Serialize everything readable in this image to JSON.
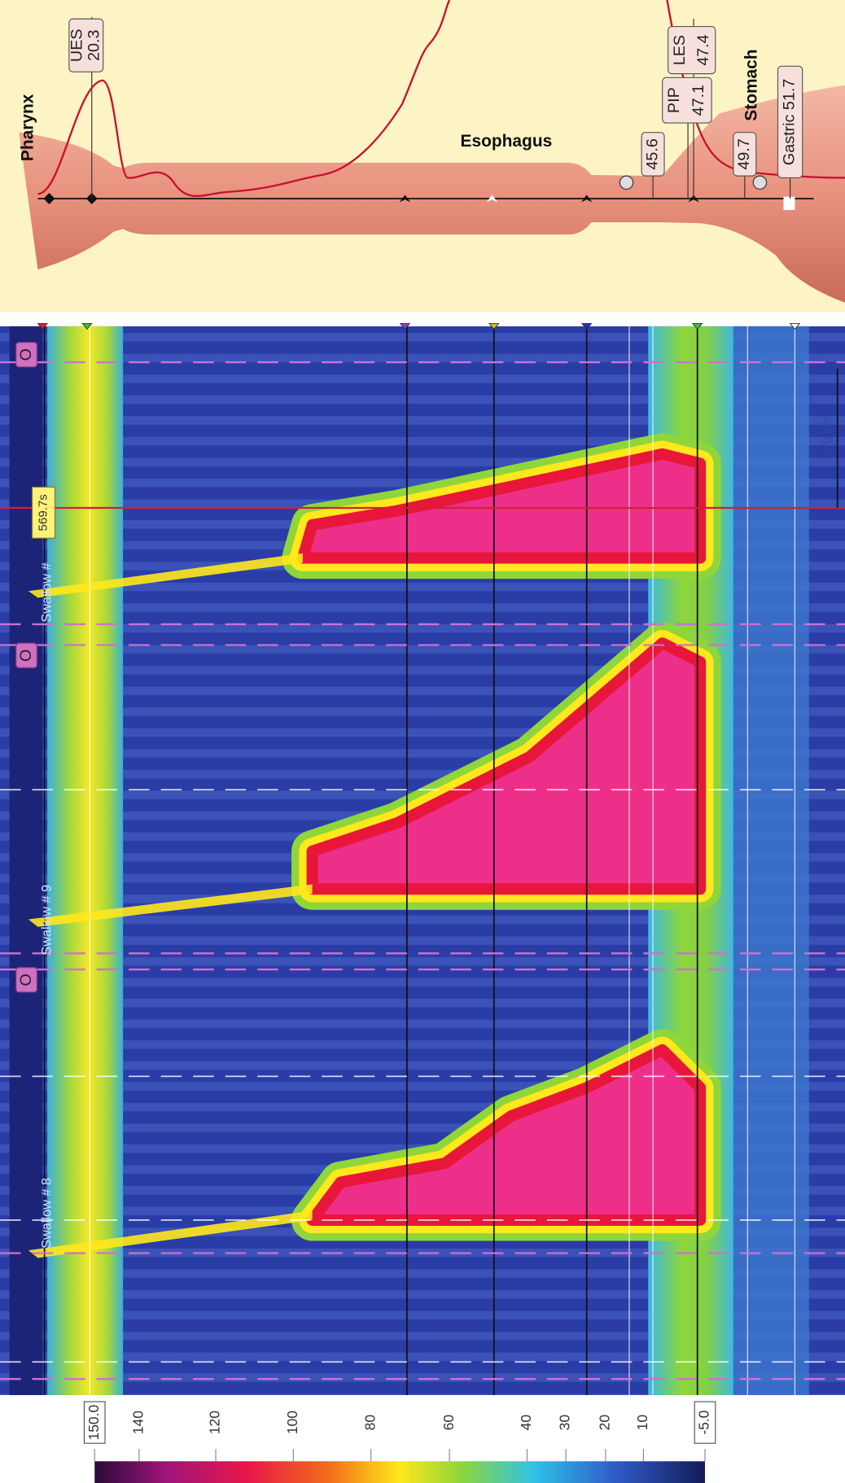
{
  "anatomy": {
    "regions": [
      "Pharynx",
      "Esophagus",
      "Stomach"
    ],
    "markers": [
      {
        "name": "UES",
        "value": "20.3"
      },
      {
        "value": "45.6"
      },
      {
        "name": "PIP",
        "value": "47.1"
      },
      {
        "name": "LES",
        "value": "47.4"
      },
      {
        "value": "49.7"
      },
      {
        "name": "Gastric",
        "value": "51.7"
      }
    ]
  },
  "topography": {
    "swallows": [
      "Swallow # 8",
      "Swallow # 9",
      "Swallow #"
    ],
    "buttons": [
      "O",
      "O",
      "O"
    ],
    "cursor_time": "569.7s",
    "time_scale": "15.0 sec"
  },
  "colorbar": {
    "ticks": [
      "150.0",
      "140",
      "120",
      "100",
      "80",
      "60",
      "40",
      "30",
      "20",
      "10",
      "-5.0"
    ]
  }
}
